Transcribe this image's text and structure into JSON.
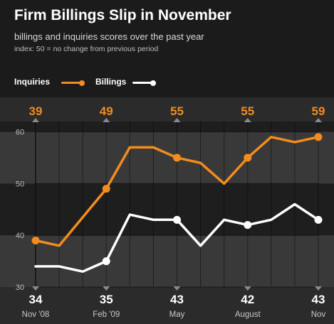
{
  "colors": {
    "inquiries": "#f28c1e",
    "billings": "#ffffff",
    "band_dark": "#1e1e1e",
    "band_light": "#393939",
    "axis_text": "#bdbdbd",
    "bottom_label": "#ffffff",
    "bottom_sublabel": "#c8c8c8"
  },
  "chart_data": {
    "type": "line",
    "title": "Firm Billings Slip in November",
    "subtitle": "billings and inquiries scores over the past year",
    "note": "index: 50 = no change from previous period",
    "xlabel": "",
    "ylabel": "",
    "ylim": [
      30,
      62
    ],
    "y_ticks": [
      "30",
      "40",
      "50",
      "60"
    ],
    "grid": true,
    "legend": {
      "position": "top-left",
      "entries": [
        "Inquiries",
        "Billings"
      ]
    },
    "series": [
      {
        "name": "Inquiries",
        "values": [
          39,
          38,
          43.5,
          49,
          57,
          57,
          55,
          54,
          50,
          55,
          59,
          58,
          59
        ],
        "markers": [
          0,
          3,
          6,
          9,
          12
        ]
      },
      {
        "name": "Billings",
        "values": [
          34,
          34,
          33,
          35,
          44,
          43,
          43,
          38,
          43,
          42,
          43,
          46,
          43
        ],
        "markers": [
          3,
          6,
          9,
          12
        ]
      }
    ],
    "top_labels": [
      {
        "index": 0,
        "text": "39"
      },
      {
        "index": 3,
        "text": "49"
      },
      {
        "index": 6,
        "text": "55"
      },
      {
        "index": 9,
        "text": "55"
      },
      {
        "index": 12,
        "text": "59"
      }
    ],
    "bottom_labels": [
      {
        "index": 0,
        "value": "34",
        "label": "Nov '08"
      },
      {
        "index": 3,
        "value": "35",
        "label": "Feb '09"
      },
      {
        "index": 6,
        "value": "43",
        "label": "May"
      },
      {
        "index": 9,
        "value": "42",
        "label": "August"
      },
      {
        "index": 12,
        "value": "43",
        "label": "Nov"
      }
    ]
  }
}
